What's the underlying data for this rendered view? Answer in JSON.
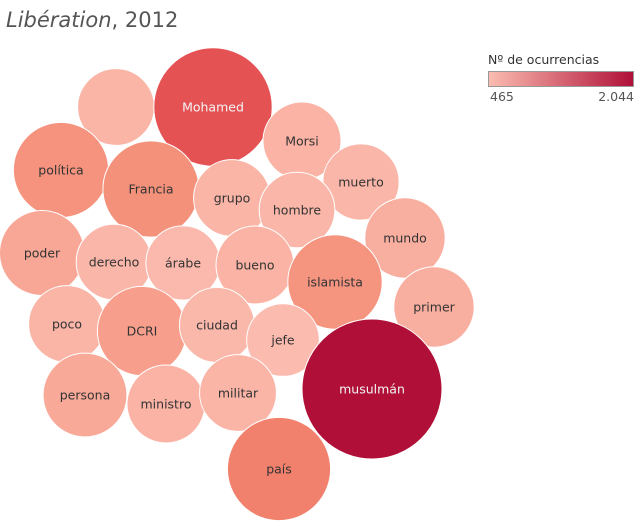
{
  "title": {
    "italic": "Libération",
    "rest": ", 2012"
  },
  "legend": {
    "title": "Nº de ocurrencias",
    "min_label": "465",
    "max_label": "2.044",
    "color_low": "#fbbcb0",
    "color_high": "#b01038"
  },
  "chart_data": {
    "type": "bubble",
    "size_and_color_measure": "Nº de ocurrencias",
    "range": [
      465,
      2044
    ],
    "items": [
      {
        "label": "",
        "value": 540
      },
      {
        "label": "Mohamed",
        "value": 1420
      },
      {
        "label": "Morsi",
        "value": 560
      },
      {
        "label": "política",
        "value": 880
      },
      {
        "label": "Francia",
        "value": 900
      },
      {
        "label": "grupo",
        "value": 540
      },
      {
        "label": "muerto",
        "value": 530
      },
      {
        "label": "hombre",
        "value": 520
      },
      {
        "label": "mundo",
        "value": 600
      },
      {
        "label": "poder",
        "value": 680
      },
      {
        "label": "derecho",
        "value": 520
      },
      {
        "label": "árabe",
        "value": 500
      },
      {
        "label": "bueno",
        "value": 560
      },
      {
        "label": "islamista",
        "value": 860
      },
      {
        "label": "primer",
        "value": 600
      },
      {
        "label": "poco",
        "value": 540
      },
      {
        "label": "DCRI",
        "value": 760
      },
      {
        "label": "ciudad",
        "value": 510
      },
      {
        "label": "jefe",
        "value": 475
      },
      {
        "label": "musulmán",
        "value": 2044
      },
      {
        "label": "persona",
        "value": 660
      },
      {
        "label": "ministro",
        "value": 560
      },
      {
        "label": "militar",
        "value": 540
      },
      {
        "label": "país",
        "value": 1050
      }
    ]
  }
}
